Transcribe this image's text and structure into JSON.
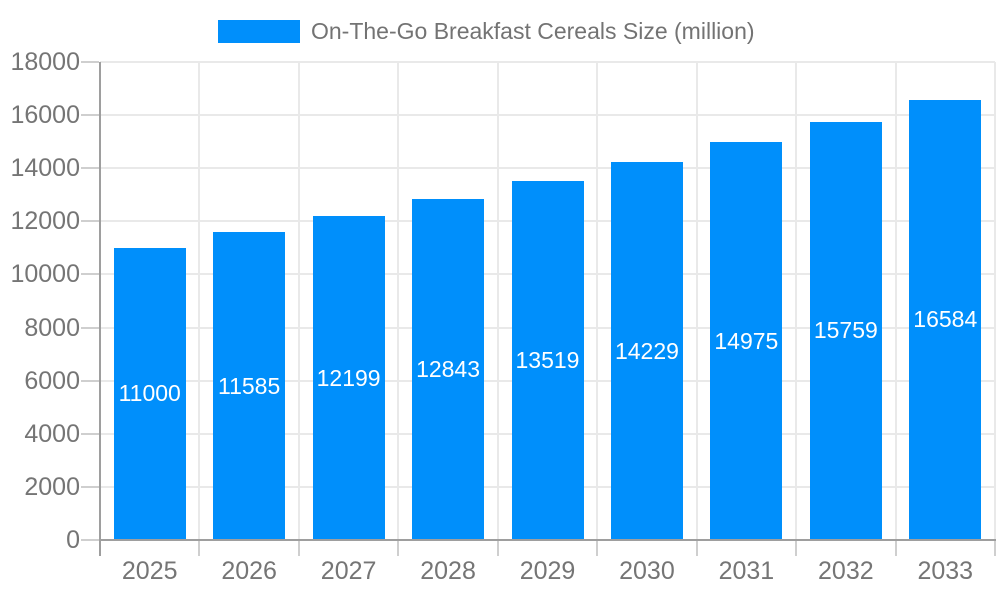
{
  "chart_data": {
    "type": "bar",
    "title": "On-The-Go Breakfast Cereals Size (million)",
    "legend_position": "top",
    "categories": [
      "2025",
      "2026",
      "2027",
      "2028",
      "2029",
      "2030",
      "2031",
      "2032",
      "2033"
    ],
    "series": [
      {
        "name": "On-The-Go Breakfast Cereals Size (million)",
        "values": [
          11000,
          11585,
          12199,
          12843,
          13519,
          14229,
          14975,
          15759,
          16584
        ]
      }
    ],
    "data_labels": [
      "11000",
      "11585",
      "12199",
      "12843",
      "13519",
      "14229",
      "14975",
      "15759",
      "16584"
    ],
    "xlabel": "",
    "ylabel": "",
    "ylim": [
      0,
      18000
    ],
    "yticks": [
      0,
      2000,
      4000,
      6000,
      8000,
      10000,
      12000,
      14000,
      16000,
      18000
    ],
    "ytick_labels": [
      "0",
      "2000",
      "4000",
      "6000",
      "8000",
      "10000",
      "12000",
      "14000",
      "16000",
      "18000"
    ],
    "grid": true,
    "colors": {
      "bar": "#008FFB",
      "bar_label_text": "#ffffff",
      "axis_line": "#9e9e9e",
      "gridline": "#e9e9e9",
      "tick": "#cfcfcf",
      "axis_text": "#757575",
      "legend_text": "#737373",
      "background": "#ffffff"
    }
  }
}
